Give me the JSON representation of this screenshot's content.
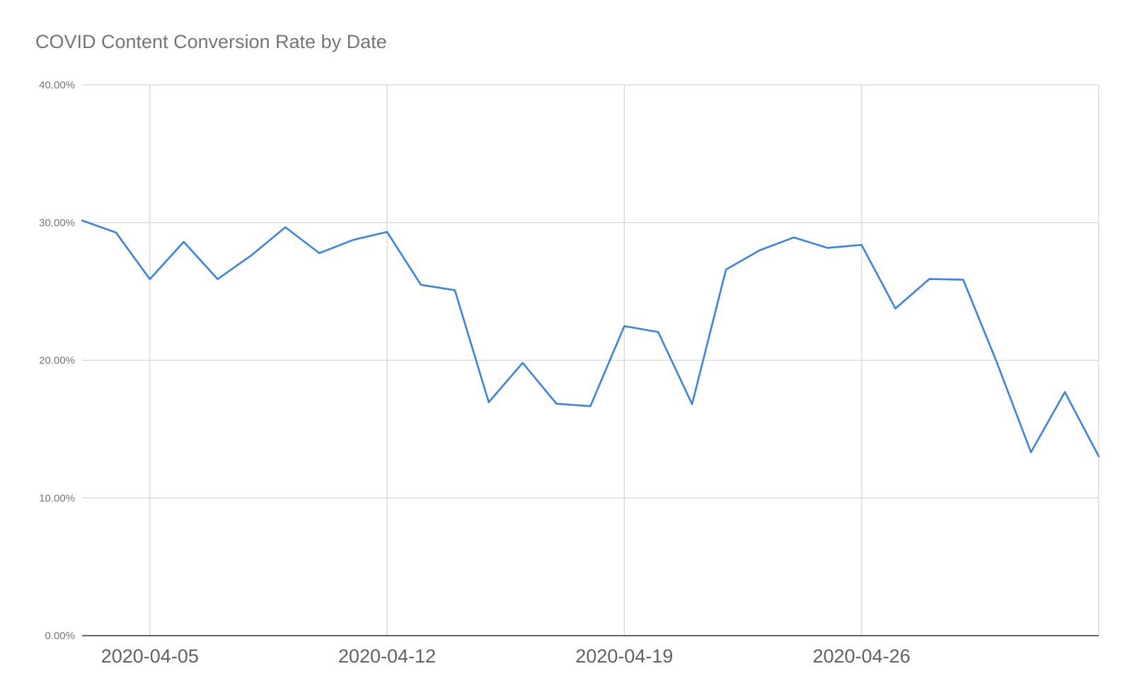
{
  "chart_data": {
    "type": "line",
    "title": "COVID Content Conversion Rate by Date",
    "xlabel": "",
    "ylabel": "",
    "ylim": [
      0,
      0.4
    ],
    "y_ticks": [
      0,
      0.1,
      0.2,
      0.3,
      0.4
    ],
    "y_tick_labels": [
      "0.00%",
      "10.00%",
      "20.00%",
      "30.00%",
      "40.00%"
    ],
    "x_ticks": [
      "2020-04-05",
      "2020-04-12",
      "2020-04-19",
      "2020-04-26"
    ],
    "grid": true,
    "legend": "none",
    "series": [
      {
        "color": "#3b82e6",
        "x": [
          "2020-04-03",
          "2020-04-04",
          "2020-04-05",
          "2020-04-06",
          "2020-04-07",
          "2020-04-08",
          "2020-04-09",
          "2020-04-10",
          "2020-04-11",
          "2020-04-12",
          "2020-04-13",
          "2020-04-14",
          "2020-04-15",
          "2020-04-16",
          "2020-04-17",
          "2020-04-18",
          "2020-04-19",
          "2020-04-20",
          "2020-04-21",
          "2020-04-22",
          "2020-04-23",
          "2020-04-24",
          "2020-04-25",
          "2020-04-26",
          "2020-04-27",
          "2020-04-28",
          "2020-04-29",
          "2020-04-30",
          "2020-05-01",
          "2020-05-02",
          "2020-05-03"
        ],
        "values": [
          0.3015,
          0.2928,
          0.2589,
          0.286,
          0.2589,
          0.2763,
          0.2966,
          0.2778,
          0.2874,
          0.2932,
          0.2548,
          0.2509,
          0.1695,
          0.1981,
          0.1684,
          0.1667,
          0.2248,
          0.2205,
          0.1681,
          0.2659,
          0.2799,
          0.2892,
          0.2816,
          0.2838,
          0.2376,
          0.259,
          0.2585,
          0.198,
          0.1332,
          0.1769,
          0.1302
        ]
      }
    ]
  }
}
